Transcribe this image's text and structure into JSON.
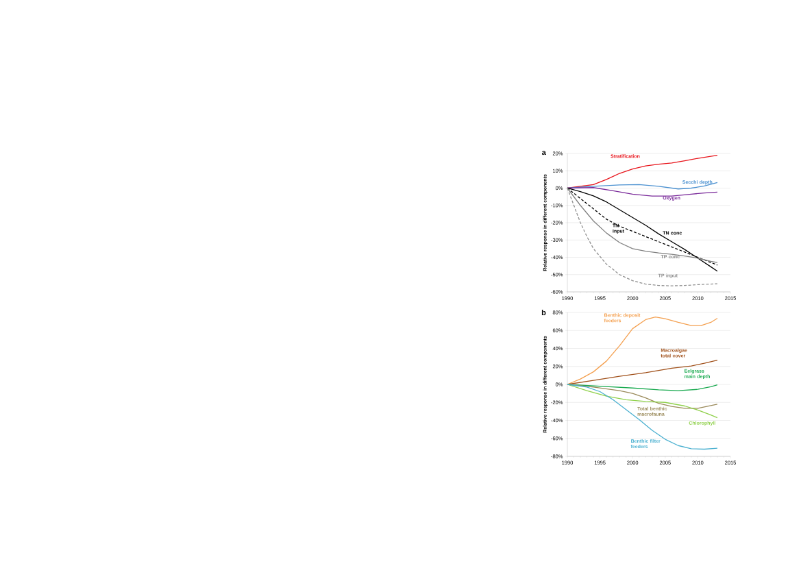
{
  "chart_data": [
    {
      "type": "line",
      "title": "a",
      "ylabel": "Relative response in different components",
      "xlim": [
        1990,
        2015
      ],
      "ylim": [
        -60,
        20
      ],
      "xticks": [
        1990,
        1995,
        2000,
        2005,
        2010,
        2015
      ],
      "yticks": [
        {
          "value": -60,
          "label": "-60%"
        },
        {
          "value": -50,
          "label": "-50%"
        },
        {
          "value": -40,
          "label": "-40%"
        },
        {
          "value": -30,
          "label": "-30%"
        },
        {
          "value": -20,
          "label": "-20%"
        },
        {
          "value": -10,
          "label": "-10%"
        },
        {
          "value": 0,
          "label": "0%"
        },
        {
          "value": 10,
          "label": "10%"
        },
        {
          "value": 20,
          "label": "20%"
        }
      ],
      "grid": "y",
      "series": [
        {
          "name": "Stratification",
          "color": "#e8141b",
          "x": [
            1990,
            1994,
            1996,
            1998,
            2000,
            2002,
            2004,
            2006,
            2008,
            2010,
            2012,
            2013
          ],
          "values": [
            0,
            2,
            5,
            8.5,
            11,
            12.8,
            13.8,
            14.5,
            15.8,
            17.2,
            18.4,
            19
          ]
        },
        {
          "name": "Secchi depth",
          "color": "#4a90d0",
          "x": [
            1990,
            1994,
            1998,
            2001,
            2004,
            2007,
            2009,
            2011,
            2013
          ],
          "values": [
            0,
            1,
            1.8,
            2,
            1,
            -0.5,
            0,
            1.2,
            3.2
          ]
        },
        {
          "name": "Oxygen",
          "color": "#7a2a9a",
          "x": [
            1990,
            1994,
            1997,
            2000,
            2003,
            2006,
            2009,
            2011,
            2013
          ],
          "values": [
            0,
            0.3,
            -1.5,
            -3.5,
            -4.6,
            -4.6,
            -3.5,
            -2.8,
            -2.3
          ]
        },
        {
          "name": "TN conc",
          "color": "#000000",
          "line_style": "solid",
          "x": [
            1990,
            1992,
            1994,
            1996,
            1998,
            2000,
            2002,
            2004,
            2006,
            2008,
            2010,
            2012,
            2013
          ],
          "values": [
            0,
            -2,
            -4.5,
            -8,
            -12.5,
            -17,
            -21.5,
            -26.5,
            -31,
            -35.5,
            -40.5,
            -45.5,
            -48
          ]
        },
        {
          "name": "TN input",
          "color": "#000000",
          "line_style": "dashed",
          "x": [
            1990,
            1992,
            1994,
            1996,
            1998,
            2000,
            2002,
            2004,
            2006,
            2008,
            2010,
            2012,
            2013
          ],
          "values": [
            0,
            -6,
            -12,
            -18,
            -22,
            -25,
            -28,
            -31,
            -34,
            -37,
            -40,
            -43,
            -44.5
          ]
        },
        {
          "name": "TP conc",
          "color": "#808080",
          "line_style": "solid",
          "x": [
            1990,
            1992,
            1994,
            1996,
            1998,
            2000,
            2002,
            2004,
            2006,
            2008,
            2010,
            2012,
            2013
          ],
          "values": [
            0,
            -10,
            -19,
            -26,
            -31.5,
            -35,
            -36.5,
            -37.5,
            -38.3,
            -39.3,
            -40.5,
            -42.3,
            -43
          ]
        },
        {
          "name": "TP input",
          "color": "#909090",
          "line_style": "dashed",
          "x": [
            1990,
            1991,
            1992,
            1993,
            1994,
            1996,
            1998,
            2000,
            2002,
            2004,
            2006,
            2008,
            2010,
            2013
          ],
          "values": [
            0,
            -10,
            -20,
            -28,
            -35,
            -44,
            -50,
            -53.5,
            -55.5,
            -56.3,
            -56.5,
            -56.3,
            -55.8,
            -55.3
          ]
        }
      ]
    },
    {
      "type": "line",
      "title": "b",
      "ylabel": "Relative response in different components",
      "xlim": [
        1990,
        2015
      ],
      "ylim": [
        -80,
        80
      ],
      "xticks": [
        1990,
        1995,
        2000,
        2005,
        2010,
        2015
      ],
      "yticks": [
        {
          "value": -80,
          "label": "-80%"
        },
        {
          "value": -60,
          "label": "-60%"
        },
        {
          "value": -40,
          "label": "-40%"
        },
        {
          "value": -20,
          "label": "-20%"
        },
        {
          "value": 0,
          "label": "0%"
        },
        {
          "value": 20,
          "label": "20%"
        },
        {
          "value": 40,
          "label": "40%"
        },
        {
          "value": 60,
          "label": "60%"
        },
        {
          "value": 80,
          "label": "80%"
        }
      ],
      "grid": "y",
      "series": [
        {
          "name": "Benthic deposit feeders",
          "color": "#f4a050",
          "x": [
            1990,
            1992,
            1994,
            1996,
            1998,
            2000,
            2002,
            2003.5,
            2005,
            2007,
            2009,
            2010.5,
            2012,
            2013
          ],
          "values": [
            0,
            6,
            14,
            26,
            43,
            62,
            72,
            75,
            73,
            69,
            65.5,
            65.5,
            69,
            73.5
          ]
        },
        {
          "name": "Macroalgae total cover",
          "color": "#a0501a",
          "x": [
            1990,
            1994,
            1998,
            2002,
            2006,
            2009,
            2011,
            2013
          ],
          "values": [
            0,
            4.5,
            9,
            13,
            18,
            20.5,
            23.5,
            27
          ]
        },
        {
          "name": "Eelgrass main depth",
          "color": "#1aaa50",
          "x": [
            1990,
            1995,
            2000,
            2004,
            2007,
            2010,
            2012,
            2013
          ],
          "values": [
            0,
            -2,
            -4,
            -6,
            -7,
            -5.5,
            -2.5,
            -0.5
          ]
        },
        {
          "name": "Total benthic macrofauna",
          "color": "#9a8a5a",
          "x": [
            1990,
            1994,
            1998,
            2000,
            2002,
            2004,
            2006,
            2008,
            2010,
            2012,
            2013
          ],
          "values": [
            0,
            -3,
            -7,
            -10,
            -15,
            -21,
            -24.5,
            -26.5,
            -26.5,
            -23.5,
            -22
          ]
        },
        {
          "name": "Chlorophyll",
          "color": "#8fd04a",
          "x": [
            1990,
            1993,
            1996,
            1999,
            2002,
            2005,
            2008,
            2010,
            2012,
            2013
          ],
          "values": [
            0,
            -7,
            -13,
            -17,
            -19,
            -20,
            -24,
            -28.5,
            -34,
            -37
          ]
        },
        {
          "name": "Benthic filter feeders",
          "color": "#4ab0d0",
          "x": [
            1990,
            1993,
            1995,
            1997,
            1999,
            2001,
            2003,
            2005,
            2007,
            2009,
            2011,
            2013
          ],
          "values": [
            0,
            -3,
            -8,
            -17,
            -28,
            -39,
            -51,
            -61,
            -68,
            -71.5,
            -72,
            -71
          ]
        }
      ]
    }
  ]
}
